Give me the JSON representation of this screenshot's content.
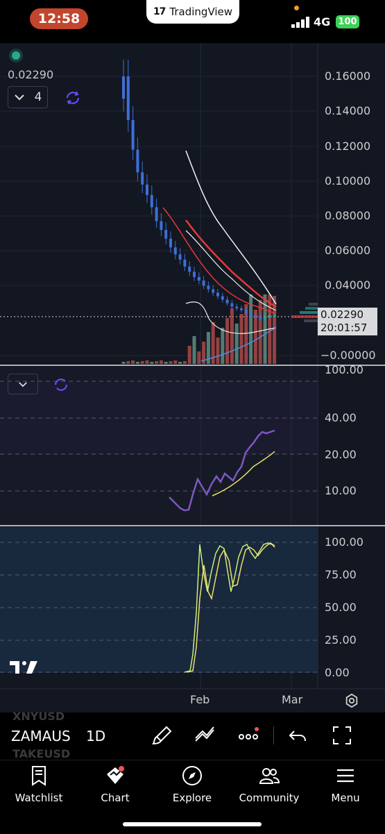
{
  "status_bar": {
    "time": "12:58",
    "app_pill": "TradingView",
    "network": "4G",
    "battery": "100"
  },
  "chart": {
    "last_price": "0.02290",
    "indicator_count": "4",
    "price_tag": "0.02290",
    "countdown": "20:01:57",
    "price_axis": [
      "0.16000",
      "0.14000",
      "0.12000",
      "0.10000",
      "0.08000",
      "0.06000",
      "0.04000",
      "−0.00000"
    ],
    "rsi_axis": [
      "100.00",
      "40.00",
      "20.00",
      "10.00"
    ],
    "stoch_axis": [
      "100.00",
      "75.00",
      "50.00",
      "25.00",
      "0.00"
    ],
    "months": [
      "Feb",
      "Mar"
    ],
    "colors": {
      "up": "#26a69a",
      "down": "#3d6fd6",
      "rsi": "#7e57c2",
      "rsi_ma": "#e7e36a",
      "stoch_k": "#c9f07a",
      "stoch_d": "#f0e06a"
    }
  },
  "chart_data": {
    "type": "candlestick",
    "series": [
      {
        "name": "price",
        "values": [
          0.16,
          0.135,
          0.118,
          0.105,
          0.098,
          0.092,
          0.085,
          0.077,
          0.072,
          0.067,
          0.062,
          0.058,
          0.055,
          0.051,
          0.048,
          0.045,
          0.043,
          0.04,
          0.038,
          0.036,
          0.034,
          0.032,
          0.03,
          0.028,
          0.027,
          0.026,
          0.024,
          0.023,
          0.022,
          0.021,
          0.022,
          0.023,
          0.023
        ]
      }
    ],
    "ylim": [
      0,
      0.16
    ]
  },
  "toolbar": {
    "ghost_top": "XNYUSD",
    "ghost_bottom": "TAKEUSD",
    "symbol": "ZAMAUS",
    "interval": "1D"
  },
  "nav": {
    "items": [
      {
        "label": "Watchlist",
        "icon": "watchlist-icon"
      },
      {
        "label": "Chart",
        "icon": "chart-icon"
      },
      {
        "label": "Explore",
        "icon": "compass-icon"
      },
      {
        "label": "Community",
        "icon": "community-icon"
      },
      {
        "label": "Menu",
        "icon": "menu-icon"
      }
    ]
  }
}
